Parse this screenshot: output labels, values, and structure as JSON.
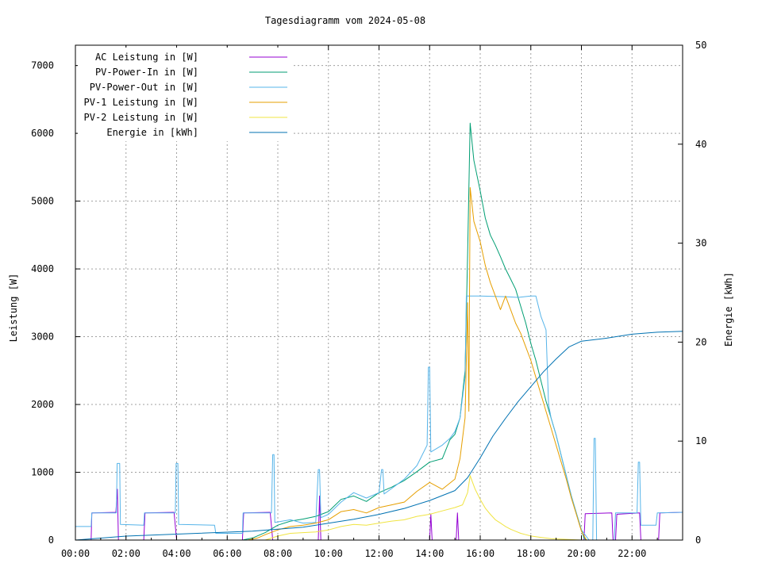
{
  "chart_data": {
    "type": "line",
    "title": "Tagesdiagramm vom 2024-05-08",
    "ylabel": "Leistung [W]",
    "y2label": "Energie [kWh]",
    "xlabel": "",
    "xlim": [
      0,
      24
    ],
    "ylim": [
      0,
      7300
    ],
    "y2lim": [
      0,
      50
    ],
    "grid": true,
    "legend_position": "top-left",
    "x_ticks": [
      {
        "v": 0,
        "label": "00:00"
      },
      {
        "v": 2,
        "label": "02:00"
      },
      {
        "v": 4,
        "label": "04:00"
      },
      {
        "v": 6,
        "label": "06:00"
      },
      {
        "v": 8,
        "label": "08:00"
      },
      {
        "v": 10,
        "label": "10:00"
      },
      {
        "v": 12,
        "label": "12:00"
      },
      {
        "v": 14,
        "label": "14:00"
      },
      {
        "v": 16,
        "label": "16:00"
      },
      {
        "v": 18,
        "label": "18:00"
      },
      {
        "v": 20,
        "label": "20:00"
      },
      {
        "v": 22,
        "label": "22:00"
      }
    ],
    "y_ticks": [
      {
        "v": 0,
        "label": "0"
      },
      {
        "v": 1000,
        "label": "1000"
      },
      {
        "v": 2000,
        "label": "2000"
      },
      {
        "v": 3000,
        "label": "3000"
      },
      {
        "v": 4000,
        "label": "4000"
      },
      {
        "v": 5000,
        "label": "5000"
      },
      {
        "v": 6000,
        "label": "6000"
      },
      {
        "v": 7000,
        "label": "7000"
      }
    ],
    "y2_ticks": [
      {
        "v": 0,
        "label": "0"
      },
      {
        "v": 10,
        "label": "10"
      },
      {
        "v": 20,
        "label": "20"
      },
      {
        "v": 30,
        "label": "30"
      },
      {
        "v": 40,
        "label": "40"
      },
      {
        "v": 50,
        "label": "50"
      }
    ],
    "series": [
      {
        "name": "AC Leistung in [W]",
        "color": "#9400d3",
        "axis": "y1",
        "points": [
          [
            0,
            0
          ],
          [
            0.62,
            0
          ],
          [
            0.65,
            400
          ],
          [
            1.6,
            410
          ],
          [
            1.66,
            750
          ],
          [
            1.7,
            0
          ],
          [
            2.7,
            0
          ],
          [
            2.75,
            400
          ],
          [
            3.9,
            410
          ],
          [
            4.0,
            0
          ],
          [
            6.6,
            0
          ],
          [
            6.65,
            400
          ],
          [
            7.7,
            410
          ],
          [
            7.8,
            0
          ],
          [
            9.6,
            0
          ],
          [
            9.65,
            650
          ],
          [
            9.7,
            0
          ],
          [
            14.0,
            0
          ],
          [
            14.05,
            380
          ],
          [
            14.1,
            0
          ],
          [
            15.05,
            0
          ],
          [
            15.1,
            400
          ],
          [
            15.15,
            0
          ],
          [
            20.1,
            0
          ],
          [
            20.15,
            390
          ],
          [
            21.2,
            400
          ],
          [
            21.25,
            0
          ],
          [
            21.35,
            0
          ],
          [
            21.4,
            380
          ],
          [
            22.3,
            400
          ],
          [
            22.35,
            0
          ],
          [
            23.05,
            0
          ],
          [
            23.1,
            400
          ],
          [
            24,
            410
          ]
        ]
      },
      {
        "name": "PV-Power-In in [W]",
        "color": "#009e73",
        "axis": "y1",
        "points": [
          [
            0,
            0
          ],
          [
            6.6,
            0
          ],
          [
            7.0,
            30
          ],
          [
            7.5,
            110
          ],
          [
            8.0,
            220
          ],
          [
            8.5,
            280
          ],
          [
            9.0,
            310
          ],
          [
            9.5,
            350
          ],
          [
            10.0,
            420
          ],
          [
            10.5,
            600
          ],
          [
            11.0,
            650
          ],
          [
            11.5,
            570
          ],
          [
            12.0,
            700
          ],
          [
            12.5,
            780
          ],
          [
            13.0,
            880
          ],
          [
            13.5,
            1010
          ],
          [
            14.0,
            1150
          ],
          [
            14.5,
            1200
          ],
          [
            14.8,
            1480
          ],
          [
            15.0,
            1560
          ],
          [
            15.2,
            1800
          ],
          [
            15.4,
            2500
          ],
          [
            15.5,
            4200
          ],
          [
            15.6,
            6150
          ],
          [
            15.75,
            5600
          ],
          [
            16.0,
            5150
          ],
          [
            16.2,
            4750
          ],
          [
            16.4,
            4500
          ],
          [
            16.6,
            4350
          ],
          [
            16.8,
            4180
          ],
          [
            17.0,
            4000
          ],
          [
            17.2,
            3850
          ],
          [
            17.4,
            3700
          ],
          [
            17.6,
            3450
          ],
          [
            17.8,
            3200
          ],
          [
            18.0,
            2900
          ],
          [
            18.2,
            2650
          ],
          [
            18.4,
            2350
          ],
          [
            18.6,
            2050
          ],
          [
            18.8,
            1800
          ],
          [
            19.0,
            1550
          ],
          [
            19.2,
            1250
          ],
          [
            19.4,
            950
          ],
          [
            19.6,
            650
          ],
          [
            19.8,
            400
          ],
          [
            20.0,
            150
          ],
          [
            20.1,
            30
          ],
          [
            20.2,
            0
          ],
          [
            24,
            0
          ]
        ]
      },
      {
        "name": "PV-Power-Out in [W]",
        "color": "#56b4e9",
        "axis": "y1",
        "points": [
          [
            0,
            200
          ],
          [
            0.62,
            200
          ],
          [
            0.65,
            400
          ],
          [
            1.62,
            400
          ],
          [
            1.65,
            1130
          ],
          [
            1.75,
            1130
          ],
          [
            1.78,
            230
          ],
          [
            2.7,
            220
          ],
          [
            2.73,
            400
          ],
          [
            3.95,
            400
          ],
          [
            3.98,
            1130
          ],
          [
            4.05,
            1130
          ],
          [
            4.08,
            230
          ],
          [
            5.5,
            220
          ],
          [
            5.55,
            100
          ],
          [
            6.6,
            100
          ],
          [
            6.63,
            400
          ],
          [
            7.75,
            400
          ],
          [
            7.8,
            1260
          ],
          [
            7.85,
            1260
          ],
          [
            7.88,
            260
          ],
          [
            8.5,
            300
          ],
          [
            9.0,
            250
          ],
          [
            9.5,
            260
          ],
          [
            9.6,
            1040
          ],
          [
            9.65,
            1040
          ],
          [
            9.7,
            330
          ],
          [
            10.0,
            380
          ],
          [
            10.5,
            560
          ],
          [
            11.0,
            700
          ],
          [
            11.5,
            620
          ],
          [
            12.0,
            700
          ],
          [
            12.1,
            1040
          ],
          [
            12.15,
            1040
          ],
          [
            12.2,
            680
          ],
          [
            12.5,
            760
          ],
          [
            13.0,
            900
          ],
          [
            13.5,
            1100
          ],
          [
            13.9,
            1400
          ],
          [
            13.95,
            2550
          ],
          [
            14.0,
            2550
          ],
          [
            14.05,
            1300
          ],
          [
            14.5,
            1400
          ],
          [
            14.8,
            1500
          ],
          [
            15.0,
            1600
          ],
          [
            15.2,
            1800
          ],
          [
            15.4,
            2400
          ],
          [
            15.45,
            3600
          ],
          [
            16.0,
            3600
          ],
          [
            17.0,
            3590
          ],
          [
            17.5,
            3580
          ],
          [
            18.0,
            3600
          ],
          [
            18.2,
            3600
          ],
          [
            18.4,
            3300
          ],
          [
            18.6,
            3100
          ],
          [
            18.7,
            2000
          ],
          [
            18.8,
            1800
          ],
          [
            19.0,
            1550
          ],
          [
            19.2,
            1250
          ],
          [
            19.4,
            950
          ],
          [
            19.6,
            650
          ],
          [
            19.8,
            400
          ],
          [
            20.0,
            150
          ],
          [
            20.3,
            0
          ],
          [
            20.45,
            0
          ],
          [
            20.5,
            1500
          ],
          [
            20.55,
            1500
          ],
          [
            20.6,
            0
          ],
          [
            21.3,
            0
          ],
          [
            21.35,
            400
          ],
          [
            22.2,
            400
          ],
          [
            22.25,
            1150
          ],
          [
            22.3,
            1150
          ],
          [
            22.35,
            220
          ],
          [
            22.95,
            220
          ],
          [
            23.0,
            400
          ],
          [
            24,
            410
          ]
        ]
      },
      {
        "name": "PV-1 Leistung in [W]",
        "color": "#e69f00",
        "axis": "y1",
        "points": [
          [
            0,
            0
          ],
          [
            6.8,
            0
          ],
          [
            7.2,
            30
          ],
          [
            7.5,
            80
          ],
          [
            8.0,
            150
          ],
          [
            8.5,
            200
          ],
          [
            9.0,
            220
          ],
          [
            9.5,
            250
          ],
          [
            10.0,
            300
          ],
          [
            10.5,
            420
          ],
          [
            11.0,
            450
          ],
          [
            11.5,
            400
          ],
          [
            12.0,
            480
          ],
          [
            12.5,
            520
          ],
          [
            13.0,
            560
          ],
          [
            13.5,
            720
          ],
          [
            14.0,
            850
          ],
          [
            14.5,
            750
          ],
          [
            15.0,
            900
          ],
          [
            15.2,
            1200
          ],
          [
            15.4,
            1800
          ],
          [
            15.5,
            3500
          ],
          [
            15.55,
            1900
          ],
          [
            15.6,
            5200
          ],
          [
            15.75,
            4700
          ],
          [
            16.0,
            4400
          ],
          [
            16.2,
            4050
          ],
          [
            16.4,
            3800
          ],
          [
            16.6,
            3600
          ],
          [
            16.8,
            3400
          ],
          [
            17.0,
            3600
          ],
          [
            17.2,
            3400
          ],
          [
            17.4,
            3200
          ],
          [
            17.6,
            3050
          ],
          [
            17.8,
            2850
          ],
          [
            18.0,
            2650
          ],
          [
            18.2,
            2400
          ],
          [
            18.4,
            2150
          ],
          [
            18.6,
            1900
          ],
          [
            18.8,
            1650
          ],
          [
            19.0,
            1400
          ],
          [
            19.2,
            1150
          ],
          [
            19.4,
            900
          ],
          [
            19.6,
            620
          ],
          [
            19.8,
            380
          ],
          [
            20.0,
            130
          ],
          [
            20.2,
            0
          ],
          [
            24,
            0
          ]
        ]
      },
      {
        "name": "PV-2 Leistung in [W]",
        "color": "#f0e442",
        "axis": "y1",
        "points": [
          [
            0,
            0
          ],
          [
            7.5,
            0
          ],
          [
            8.0,
            60
          ],
          [
            8.5,
            100
          ],
          [
            9.0,
            110
          ],
          [
            9.5,
            120
          ],
          [
            10.0,
            150
          ],
          [
            10.5,
            200
          ],
          [
            11.0,
            230
          ],
          [
            11.5,
            220
          ],
          [
            12.0,
            250
          ],
          [
            12.5,
            280
          ],
          [
            13.0,
            300
          ],
          [
            13.5,
            350
          ],
          [
            14.0,
            380
          ],
          [
            14.5,
            430
          ],
          [
            15.0,
            480
          ],
          [
            15.3,
            520
          ],
          [
            15.5,
            700
          ],
          [
            15.6,
            950
          ],
          [
            15.7,
            850
          ],
          [
            15.8,
            750
          ],
          [
            16.0,
            600
          ],
          [
            16.2,
            470
          ],
          [
            16.4,
            380
          ],
          [
            16.6,
            300
          ],
          [
            16.8,
            250
          ],
          [
            17.0,
            200
          ],
          [
            17.2,
            160
          ],
          [
            17.4,
            130
          ],
          [
            17.6,
            100
          ],
          [
            17.8,
            80
          ],
          [
            18.0,
            60
          ],
          [
            18.4,
            40
          ],
          [
            18.8,
            20
          ],
          [
            19.4,
            10
          ],
          [
            20.0,
            0
          ],
          [
            24,
            0
          ]
        ]
      },
      {
        "name": "Energie in [kWh]",
        "color": "#0072b2",
        "axis": "y2",
        "points": [
          [
            0,
            0
          ],
          [
            1,
            0.2
          ],
          [
            2,
            0.4
          ],
          [
            4,
            0.6
          ],
          [
            6,
            0.8
          ],
          [
            7,
            0.9
          ],
          [
            8,
            1.1
          ],
          [
            9,
            1.3
          ],
          [
            10,
            1.7
          ],
          [
            11,
            2.1
          ],
          [
            12,
            2.6
          ],
          [
            13,
            3.2
          ],
          [
            14,
            4.0
          ],
          [
            15,
            5.0
          ],
          [
            15.5,
            6.3
          ],
          [
            16,
            8.3
          ],
          [
            16.5,
            10.5
          ],
          [
            17,
            12.3
          ],
          [
            17.5,
            14.0
          ],
          [
            18,
            15.5
          ],
          [
            18.5,
            17.0
          ],
          [
            19,
            18.3
          ],
          [
            19.5,
            19.5
          ],
          [
            20,
            20.1
          ],
          [
            21,
            20.4
          ],
          [
            22,
            20.8
          ],
          [
            23,
            21.0
          ],
          [
            24,
            21.1
          ]
        ]
      }
    ]
  }
}
